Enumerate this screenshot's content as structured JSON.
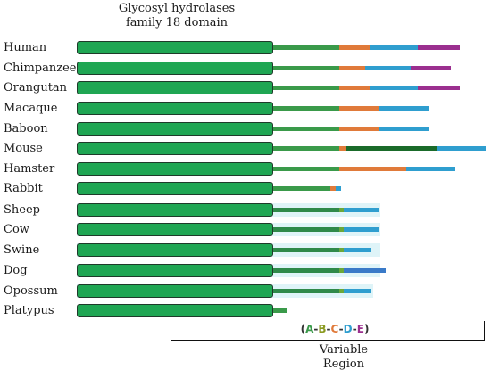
{
  "header": {
    "line1": "Glycosyl hydrolases",
    "line2": "family 18 domain"
  },
  "colors": {
    "domain": "#1fa653",
    "A": "#3a9a4a",
    "B": "#6aa83a",
    "C": "#e07a3a",
    "D": "#2f9ecf",
    "E": "#9b2f8f"
  },
  "legend": {
    "open": "(",
    "A": "A",
    "d1": "-",
    "B": "B",
    "d2": "-",
    "C": "C",
    "d3": "-",
    "D": "D",
    "d4": "-",
    "E": "E",
    "close": ")"
  },
  "footer": {
    "line1": "Variable",
    "line2": "Region"
  },
  "rows": [
    {
      "species": "Human"
    },
    {
      "species": "Chimpanzee"
    },
    {
      "species": "Orangutan"
    },
    {
      "species": "Macaque"
    },
    {
      "species": "Baboon"
    },
    {
      "species": "Mouse"
    },
    {
      "species": "Hamster"
    },
    {
      "species": "Rabbit"
    },
    {
      "species": "Sheep"
    },
    {
      "species": "Cow"
    },
    {
      "species": "Swine"
    },
    {
      "species": "Dog"
    },
    {
      "species": "Opossum"
    },
    {
      "species": "Platypus"
    }
  ]
}
